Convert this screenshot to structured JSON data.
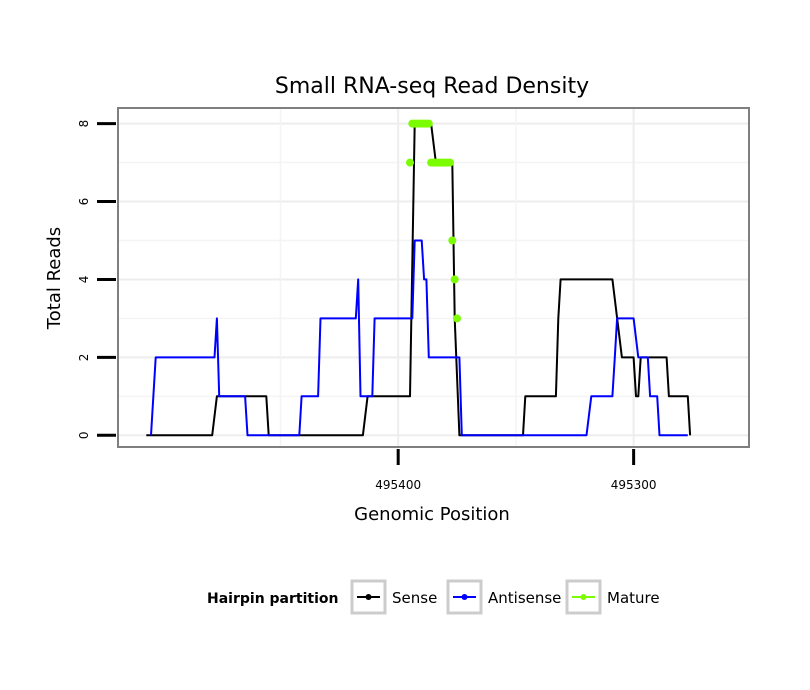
{
  "chart_data": {
    "type": "line",
    "title": "Small RNA-seq Read Density",
    "xlabel": "Genomic Position",
    "ylabel": "Total Reads",
    "x_reversed": true,
    "xlim": [
      495519,
      495251
    ],
    "ylim": [
      -0.3,
      8.4
    ],
    "x_ticks": [
      495400,
      495300
    ],
    "x_tick_labels": [
      "495400",
      "495300"
    ],
    "y_ticks": [
      0,
      2,
      4,
      6,
      8
    ],
    "y_tick_labels": [
      "0",
      "2",
      "4",
      "6",
      "8"
    ],
    "grid": true,
    "legend": {
      "title": "Hairpin partition",
      "position": "bottom",
      "entries": [
        "Sense",
        "Antisense",
        "Mature"
      ]
    },
    "series": [
      {
        "name": "Sense",
        "color": "#000000",
        "style": "line",
        "points": [
          [
            495507,
            0
          ],
          [
            495479,
            0
          ],
          [
            495477,
            1
          ],
          [
            495456,
            1
          ],
          [
            495455,
            0
          ],
          [
            495415,
            0
          ],
          [
            495413,
            1
          ],
          [
            495395,
            1
          ],
          [
            495393,
            8
          ],
          [
            495386,
            8
          ],
          [
            495384,
            7
          ],
          [
            495377,
            7
          ],
          [
            495376,
            3
          ],
          [
            495374,
            0
          ],
          [
            495347,
            0
          ],
          [
            495346,
            1
          ],
          [
            495333,
            1
          ],
          [
            495332,
            3
          ],
          [
            495331,
            4
          ],
          [
            495309,
            4
          ],
          [
            495305,
            2
          ],
          [
            495300,
            2
          ],
          [
            495299,
            1
          ],
          [
            495298,
            1
          ],
          [
            495297,
            2
          ],
          [
            495286,
            2
          ],
          [
            495285,
            1
          ],
          [
            495277,
            1
          ],
          [
            495276,
            0
          ]
        ]
      },
      {
        "name": "Antisense",
        "color": "#0000ff",
        "style": "line",
        "points": [
          [
            495505,
            0
          ],
          [
            495503,
            2
          ],
          [
            495478,
            2
          ],
          [
            495477,
            3
          ],
          [
            495476,
            1
          ],
          [
            495465,
            1
          ],
          [
            495464,
            0
          ],
          [
            495442,
            0
          ],
          [
            495441,
            1
          ],
          [
            495434,
            1
          ],
          [
            495433,
            3
          ],
          [
            495418,
            3
          ],
          [
            495417,
            4
          ],
          [
            495416,
            1
          ],
          [
            495411,
            1
          ],
          [
            495410,
            3
          ],
          [
            495394,
            3
          ],
          [
            495393,
            5
          ],
          [
            495390,
            5
          ],
          [
            495389,
            4
          ],
          [
            495388,
            4
          ],
          [
            495387,
            2
          ],
          [
            495374,
            2
          ],
          [
            495373,
            0
          ],
          [
            495320,
            0
          ],
          [
            495318,
            1
          ],
          [
            495309,
            1
          ],
          [
            495308,
            2
          ],
          [
            495307,
            3
          ],
          [
            495300,
            3
          ],
          [
            495298,
            2
          ],
          [
            495294,
            2
          ],
          [
            495293,
            1
          ],
          [
            495290,
            1
          ],
          [
            495289,
            0
          ],
          [
            495277,
            0
          ]
        ]
      },
      {
        "name": "Mature",
        "color": "#7cfc00",
        "style": "points",
        "points": [
          [
            495395,
            7
          ],
          [
            495394,
            8
          ],
          [
            495393,
            8
          ],
          [
            495392,
            8
          ],
          [
            495391,
            8
          ],
          [
            495390,
            8
          ],
          [
            495389,
            8
          ],
          [
            495388,
            8
          ],
          [
            495387,
            8
          ],
          [
            495386,
            7
          ],
          [
            495385,
            7
          ],
          [
            495384,
            7
          ],
          [
            495383,
            7
          ],
          [
            495382,
            7
          ],
          [
            495381,
            7
          ],
          [
            495380,
            7
          ],
          [
            495379,
            7
          ],
          [
            495378,
            7
          ],
          [
            495377,
            5
          ],
          [
            495376,
            4
          ],
          [
            495375,
            3
          ]
        ]
      }
    ]
  }
}
